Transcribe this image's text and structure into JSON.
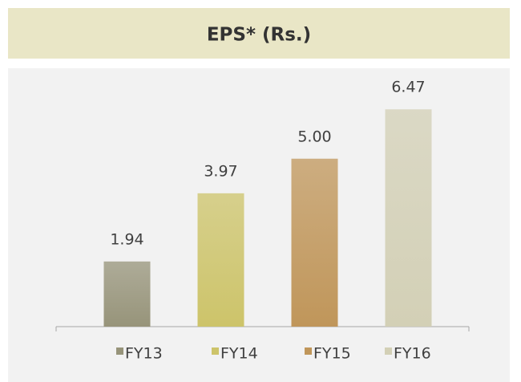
{
  "chart_data": {
    "type": "bar",
    "title": "EPS* (Rs.)",
    "categories": [
      "FY13",
      "FY14",
      "FY15",
      "FY16"
    ],
    "values": [
      1.94,
      3.97,
      5.0,
      6.47
    ],
    "value_labels": [
      "1.94",
      "3.97",
      "5.00",
      "6.47"
    ],
    "colors": [
      "#97947a",
      "#cdc46a",
      "#c0965a",
      "#d3d0b6"
    ],
    "legend": "bottom"
  }
}
